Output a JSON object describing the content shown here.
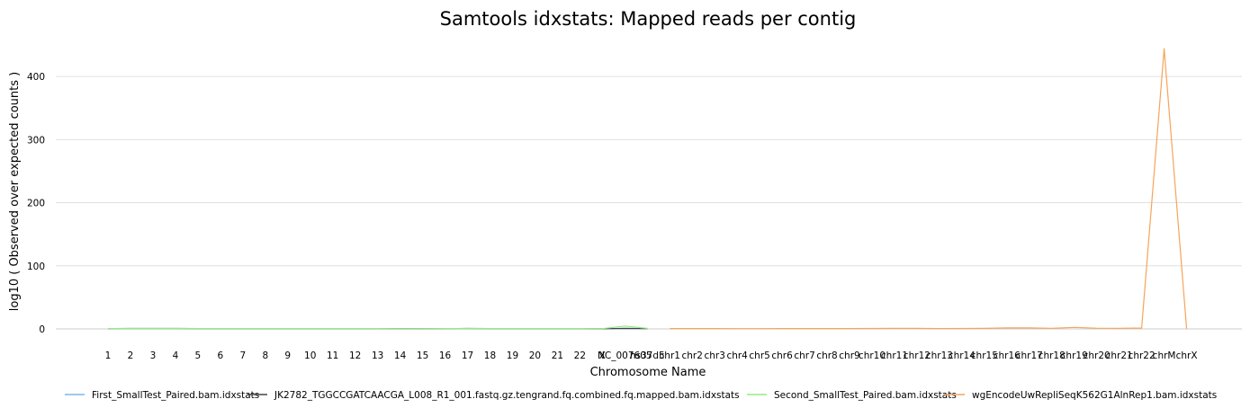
{
  "chart_data": {
    "type": "line",
    "title": "Samtools idxstats: Mapped reads per contig",
    "xlabel": "Chromosome Name",
    "ylabel": "log10 ( Observed over expected counts )",
    "ylim": [
      0,
      450
    ],
    "yticks": [
      0,
      100,
      200,
      300,
      400
    ],
    "grid": true,
    "legend_position": "bottom",
    "categories": [
      "1",
      "2",
      "3",
      "4",
      "5",
      "6",
      "7",
      "8",
      "9",
      "10",
      "11",
      "12",
      "13",
      "14",
      "15",
      "16",
      "17",
      "18",
      "19",
      "20",
      "21",
      "22",
      "X",
      "NC_007605",
      "hs37d5",
      "chr1",
      "chr2",
      "chr3",
      "chr4",
      "chr5",
      "chr6",
      "chr7",
      "chr8",
      "chr9",
      "chr10",
      "chr11",
      "chr12",
      "chr13",
      "chr14",
      "chr15",
      "chr16",
      "chr17",
      "chr18",
      "chr19",
      "chr20",
      "chr21",
      "chr22",
      "chrM",
      "chrX"
    ],
    "series": [
      {
        "name": "First_SmallTest_Paired.bam.idxstats",
        "color": "#7cb5ec",
        "values": [
          0.4,
          0.5,
          0.5,
          0.5,
          0.5,
          0.4,
          0.5,
          0.5,
          0.4,
          0.5,
          0.5,
          0.4,
          0.4,
          0.3,
          0.3,
          0.5,
          0.5,
          0.5,
          0.5,
          0.4,
          0.4,
          0.5,
          0.3,
          0.6,
          0.3,
          null,
          null,
          null,
          null,
          null,
          null,
          null,
          null,
          null,
          null,
          null,
          null,
          null,
          null,
          null,
          null,
          null,
          null,
          null,
          null,
          null,
          null,
          null,
          null
        ]
      },
      {
        "name": "JK2782_TGGCCGATCAACGA_L008_R1_001.fastq.gz.tengrand.fq.combined.fq.mapped.bam.idxstats",
        "color": "#434348",
        "values": [
          0.6,
          0.7,
          0.7,
          0.7,
          0.6,
          0.6,
          0.6,
          0.6,
          0.5,
          0.6,
          0.6,
          0.6,
          0.5,
          0.5,
          0.4,
          0.6,
          0.7,
          0.6,
          0.6,
          0.5,
          0.5,
          0.6,
          0.3,
          0.8,
          0.4,
          null,
          null,
          null,
          null,
          null,
          null,
          null,
          null,
          null,
          null,
          null,
          null,
          null,
          null,
          null,
          null,
          null,
          null,
          null,
          null,
          null,
          null,
          null,
          null
        ]
      },
      {
        "name": "Second_SmallTest_Paired.bam.idxstats",
        "color": "#90ed7d",
        "values": [
          0.5,
          0.6,
          0.6,
          0.6,
          0.6,
          0.5,
          0.6,
          0.6,
          0.5,
          0.6,
          0.6,
          0.5,
          0.5,
          0.4,
          0.4,
          0.6,
          0.6,
          0.6,
          0.6,
          0.5,
          0.5,
          0.6,
          0.4,
          4.5,
          0.8,
          null,
          null,
          null,
          null,
          null,
          null,
          null,
          null,
          null,
          null,
          null,
          null,
          null,
          null,
          null,
          null,
          null,
          null,
          null,
          null,
          null,
          null,
          null,
          null
        ]
      },
      {
        "name": "wgEncodeUwRepliSeqK562G1AlnRep1.bam.idxstats",
        "color": "#f7a35c",
        "values": [
          null,
          null,
          null,
          null,
          null,
          null,
          null,
          null,
          null,
          null,
          null,
          null,
          null,
          null,
          null,
          null,
          null,
          null,
          null,
          null,
          null,
          null,
          null,
          null,
          null,
          0.5,
          0.5,
          0.5,
          0.4,
          0.4,
          0.5,
          0.6,
          0.5,
          0.6,
          0.7,
          0.8,
          0.8,
          0.6,
          0.7,
          0.9,
          1.5,
          1.6,
          1.0,
          2.4,
          1.2,
          1.0,
          1.4,
          444,
          0.1
        ]
      }
    ]
  }
}
